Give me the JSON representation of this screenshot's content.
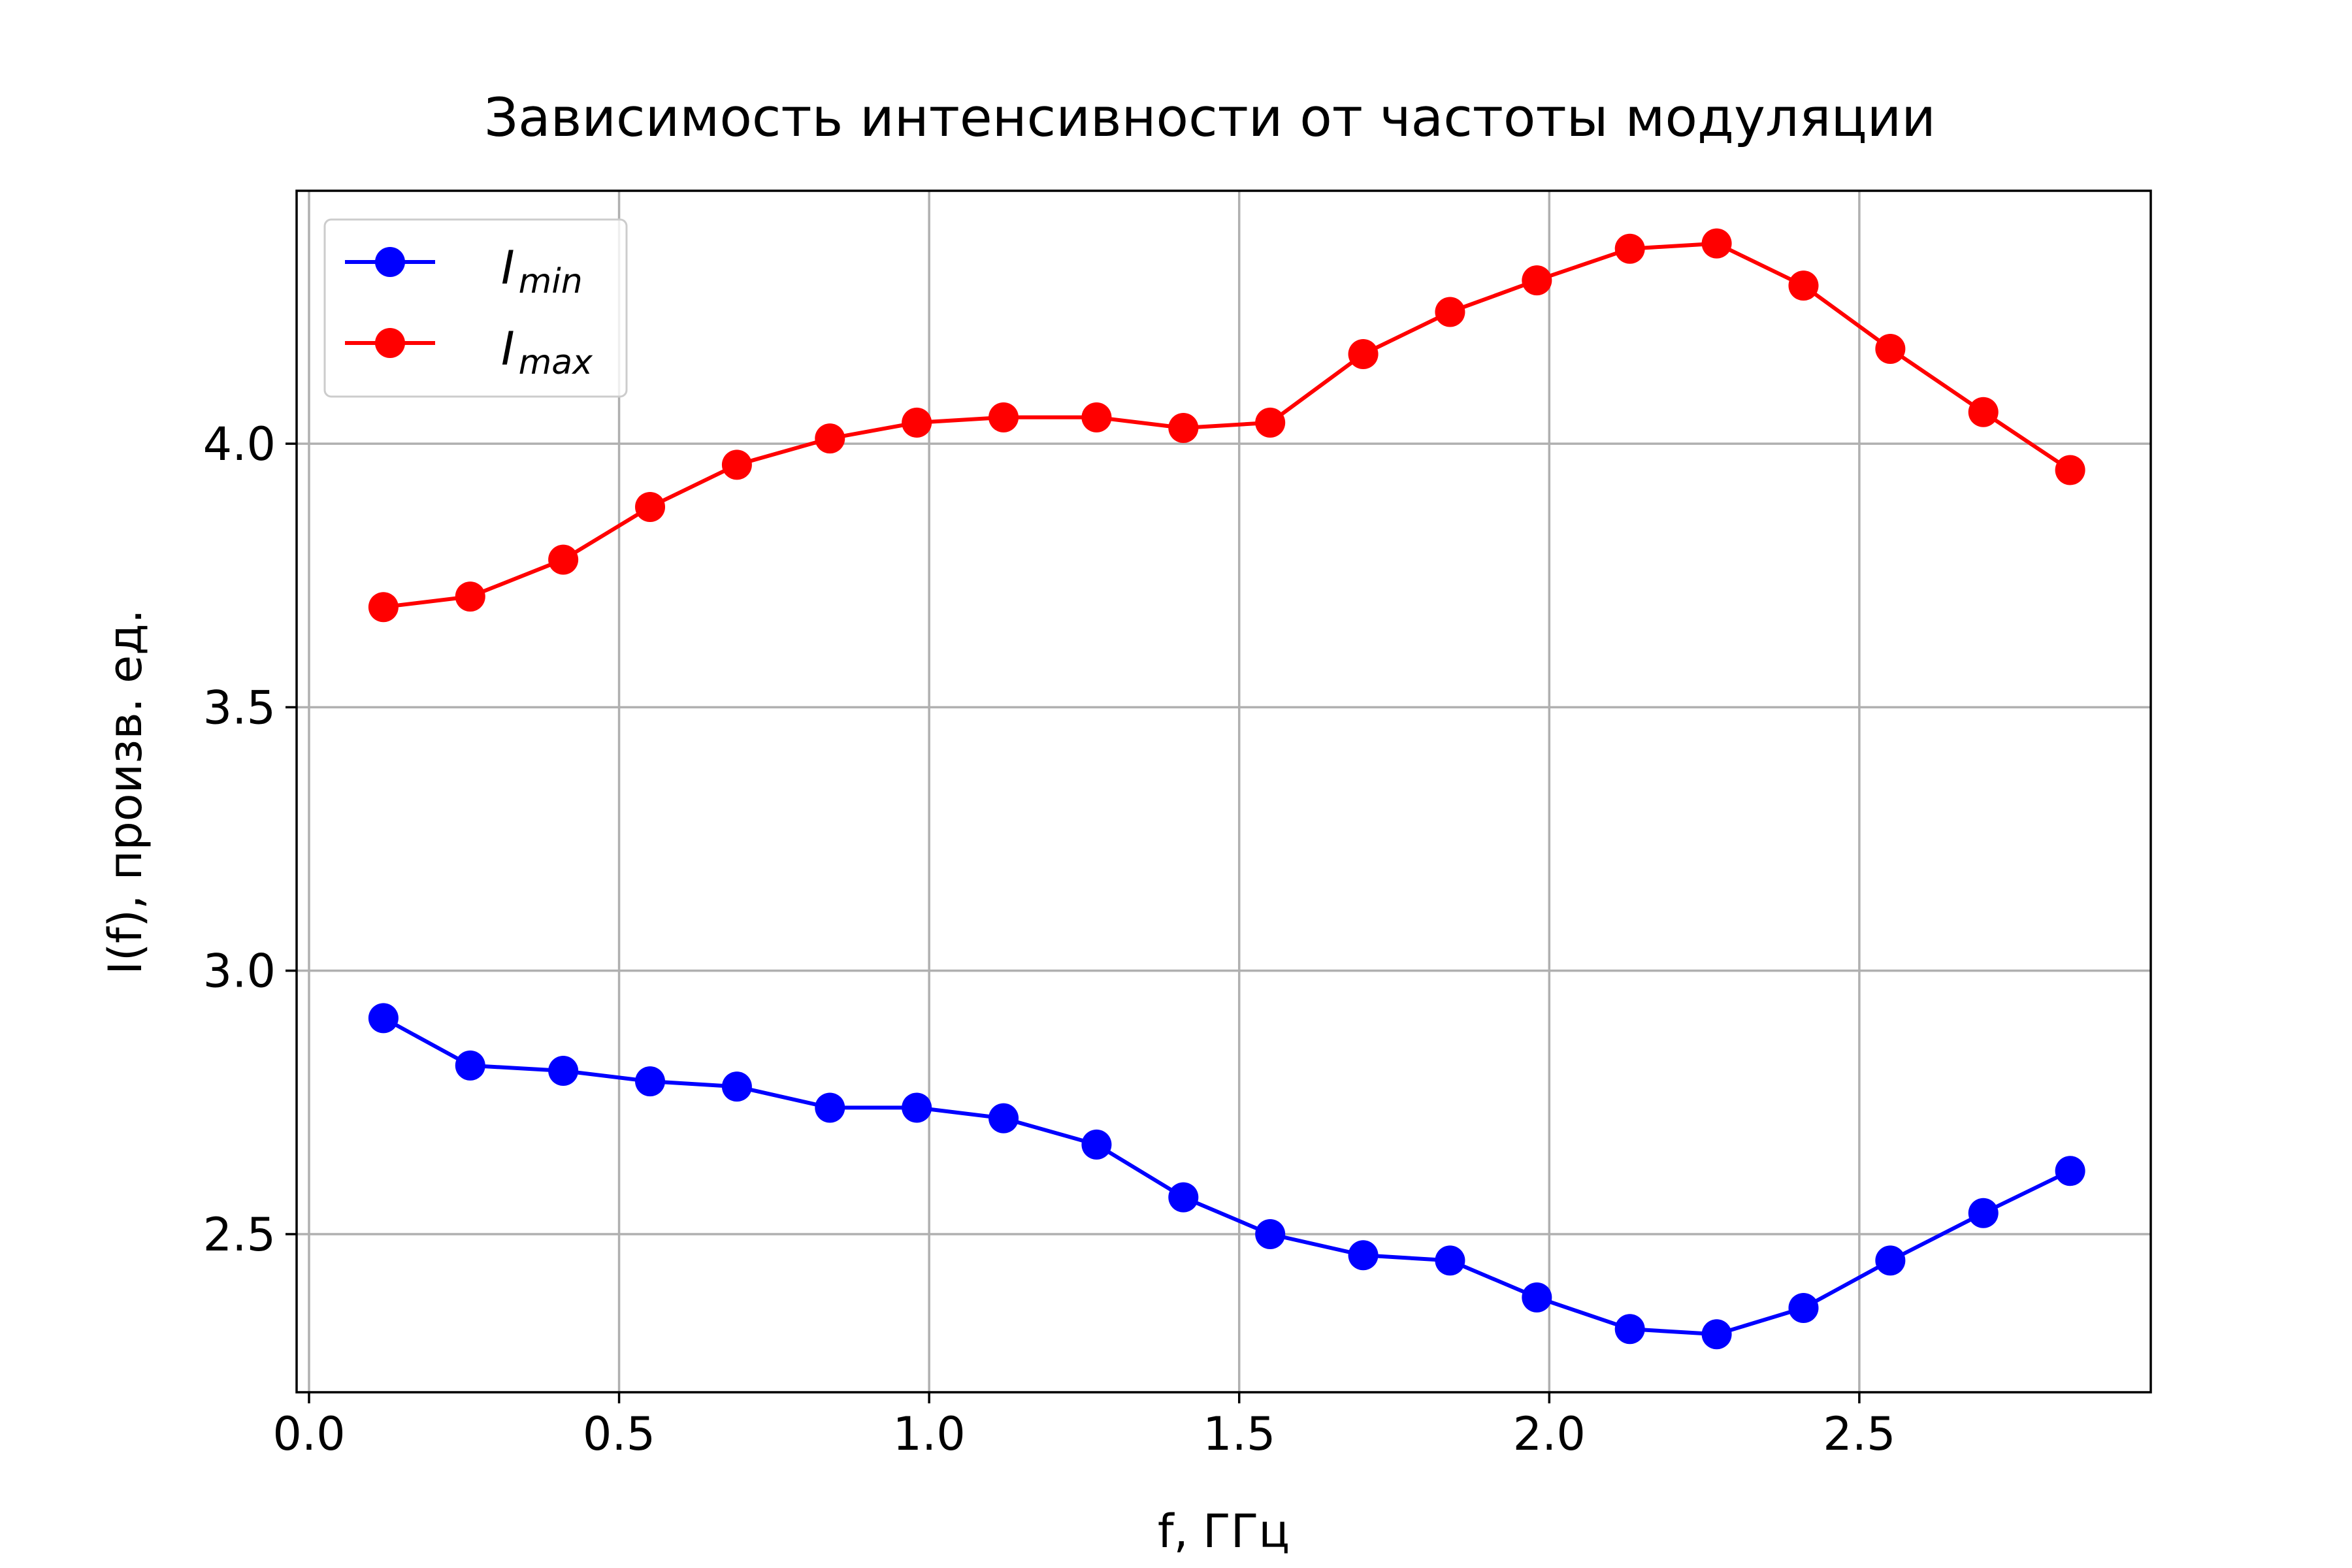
{
  "chart_data": {
    "type": "line",
    "title": "Зависимость интенсивности от частоты модуляции",
    "xlabel": "f, ГГц",
    "ylabel": "I(f), произв. ед.",
    "xlim": [
      -0.02,
      2.97
    ],
    "ylim": [
      2.2,
      4.48
    ],
    "xticks": [
      0.0,
      0.5,
      1.0,
      1.5,
      2.0,
      2.5
    ],
    "xtick_labels": [
      "0.0",
      "0.5",
      "1.0",
      "1.5",
      "2.0",
      "2.5"
    ],
    "yticks": [
      2.5,
      3.0,
      3.5,
      4.0
    ],
    "ytick_labels": [
      "2.5",
      "3.0",
      "3.5",
      "4.0"
    ],
    "grid": true,
    "legend_position": "top-left",
    "x": [
      0.12,
      0.26,
      0.41,
      0.55,
      0.69,
      0.84,
      0.98,
      1.12,
      1.27,
      1.41,
      1.55,
      1.7,
      1.84,
      1.98,
      2.13,
      2.27,
      2.41,
      2.55,
      2.7,
      2.84
    ],
    "series": [
      {
        "name": "I_min",
        "legend_base": "I",
        "legend_sub": "min",
        "color": "#0000ff",
        "marker": "circle",
        "values": [
          2.91,
          2.82,
          2.81,
          2.79,
          2.78,
          2.74,
          2.74,
          2.72,
          2.67,
          2.57,
          2.5,
          2.46,
          2.45,
          2.38,
          2.32,
          2.31,
          2.36,
          2.45,
          2.54,
          2.62
        ]
      },
      {
        "name": "I_max",
        "legend_base": "I",
        "legend_sub": "max",
        "color": "#ff0000",
        "marker": "circle",
        "values": [
          3.69,
          3.71,
          3.78,
          3.88,
          3.96,
          4.01,
          4.04,
          4.05,
          4.05,
          4.03,
          4.04,
          4.17,
          4.25,
          4.31,
          4.37,
          4.38,
          4.3,
          4.18,
          4.06,
          3.95
        ]
      }
    ]
  }
}
